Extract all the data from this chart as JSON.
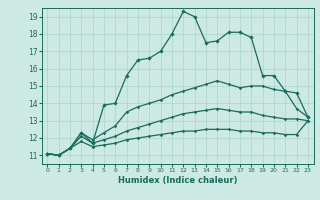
{
  "xlabel": "Humidex (Indice chaleur)",
  "ylabel": "",
  "xlim": [
    -0.5,
    23.5
  ],
  "ylim": [
    10.5,
    19.5
  ],
  "xtick_labels": [
    "0",
    "1",
    "2",
    "3",
    "4",
    "5",
    "6",
    "7",
    "8",
    "9",
    "10",
    "11",
    "12",
    "13",
    "14",
    "15",
    "16",
    "17",
    "18",
    "19",
    "20",
    "21",
    "22",
    "23"
  ],
  "ytick_labels": [
    "11",
    "12",
    "13",
    "14",
    "15",
    "16",
    "17",
    "18",
    "19"
  ],
  "background_color": "#cce9e4",
  "grid_color": "#aad4cc",
  "line_color": "#1a6b5a",
  "line1_x": [
    0,
    1,
    2,
    3,
    4,
    5,
    6,
    7,
    8,
    9,
    10,
    11,
    12,
    13,
    14,
    15,
    16,
    17,
    18,
    19,
    20,
    21,
    22,
    23
  ],
  "line1_y": [
    11.1,
    11.0,
    11.4,
    12.3,
    11.7,
    13.9,
    14.0,
    15.6,
    16.5,
    16.6,
    17.0,
    18.0,
    19.3,
    19.0,
    17.5,
    17.6,
    18.1,
    18.1,
    17.8,
    15.6,
    15.6,
    14.7,
    14.6,
    13.2
  ],
  "line2_x": [
    0,
    1,
    2,
    3,
    4,
    5,
    6,
    7,
    8,
    9,
    10,
    11,
    12,
    13,
    14,
    15,
    16,
    17,
    18,
    19,
    20,
    21,
    22,
    23
  ],
  "line2_y": [
    11.1,
    11.0,
    11.4,
    12.3,
    11.9,
    12.3,
    12.7,
    13.5,
    13.8,
    14.0,
    14.2,
    14.5,
    14.7,
    14.9,
    15.1,
    15.3,
    15.1,
    14.9,
    15.0,
    15.0,
    14.8,
    14.7,
    13.7,
    13.2
  ],
  "line3_x": [
    0,
    1,
    2,
    3,
    4,
    5,
    6,
    7,
    8,
    9,
    10,
    11,
    12,
    13,
    14,
    15,
    16,
    17,
    18,
    19,
    20,
    21,
    22,
    23
  ],
  "line3_y": [
    11.1,
    11.0,
    11.4,
    12.1,
    11.7,
    11.9,
    12.1,
    12.4,
    12.6,
    12.8,
    13.0,
    13.2,
    13.4,
    13.5,
    13.6,
    13.7,
    13.6,
    13.5,
    13.5,
    13.3,
    13.2,
    13.1,
    13.1,
    13.0
  ],
  "line4_x": [
    0,
    1,
    2,
    3,
    4,
    5,
    6,
    7,
    8,
    9,
    10,
    11,
    12,
    13,
    14,
    15,
    16,
    17,
    18,
    19,
    20,
    21,
    22,
    23
  ],
  "line4_y": [
    11.1,
    11.0,
    11.4,
    11.8,
    11.5,
    11.6,
    11.7,
    11.9,
    12.0,
    12.1,
    12.2,
    12.3,
    12.4,
    12.4,
    12.5,
    12.5,
    12.5,
    12.4,
    12.4,
    12.3,
    12.3,
    12.2,
    12.2,
    13.0
  ]
}
